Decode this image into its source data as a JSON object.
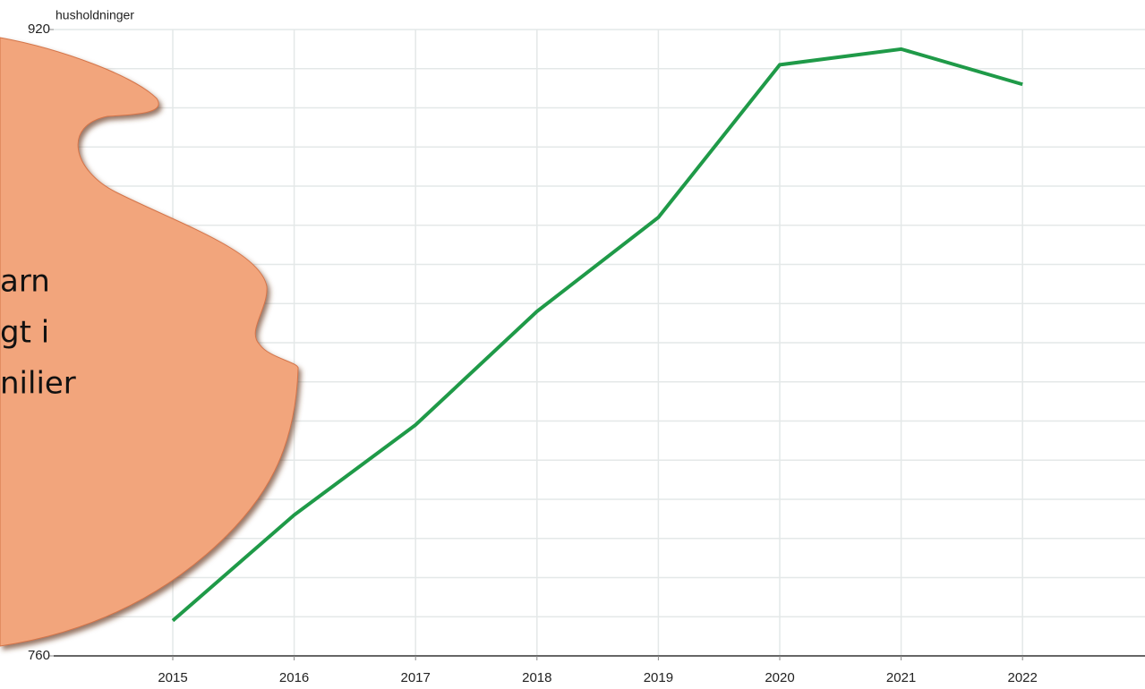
{
  "chart_data": {
    "type": "line",
    "y_label": "husholdninger",
    "categories": [
      "2015",
      "2016",
      "2017",
      "2018",
      "2019",
      "2020",
      "2021",
      "2022"
    ],
    "series": [
      {
        "name": "husholdninger",
        "color": "#1f9a48",
        "values": [
          769,
          796,
          819,
          848,
          872,
          911,
          915,
          906
        ]
      }
    ],
    "ylim": [
      760,
      920
    ],
    "yticks": [
      760,
      920
    ],
    "grid": true,
    "grid_step": 10,
    "overlay_text": [
      "arn",
      "gt i",
      "nilier"
    ]
  }
}
